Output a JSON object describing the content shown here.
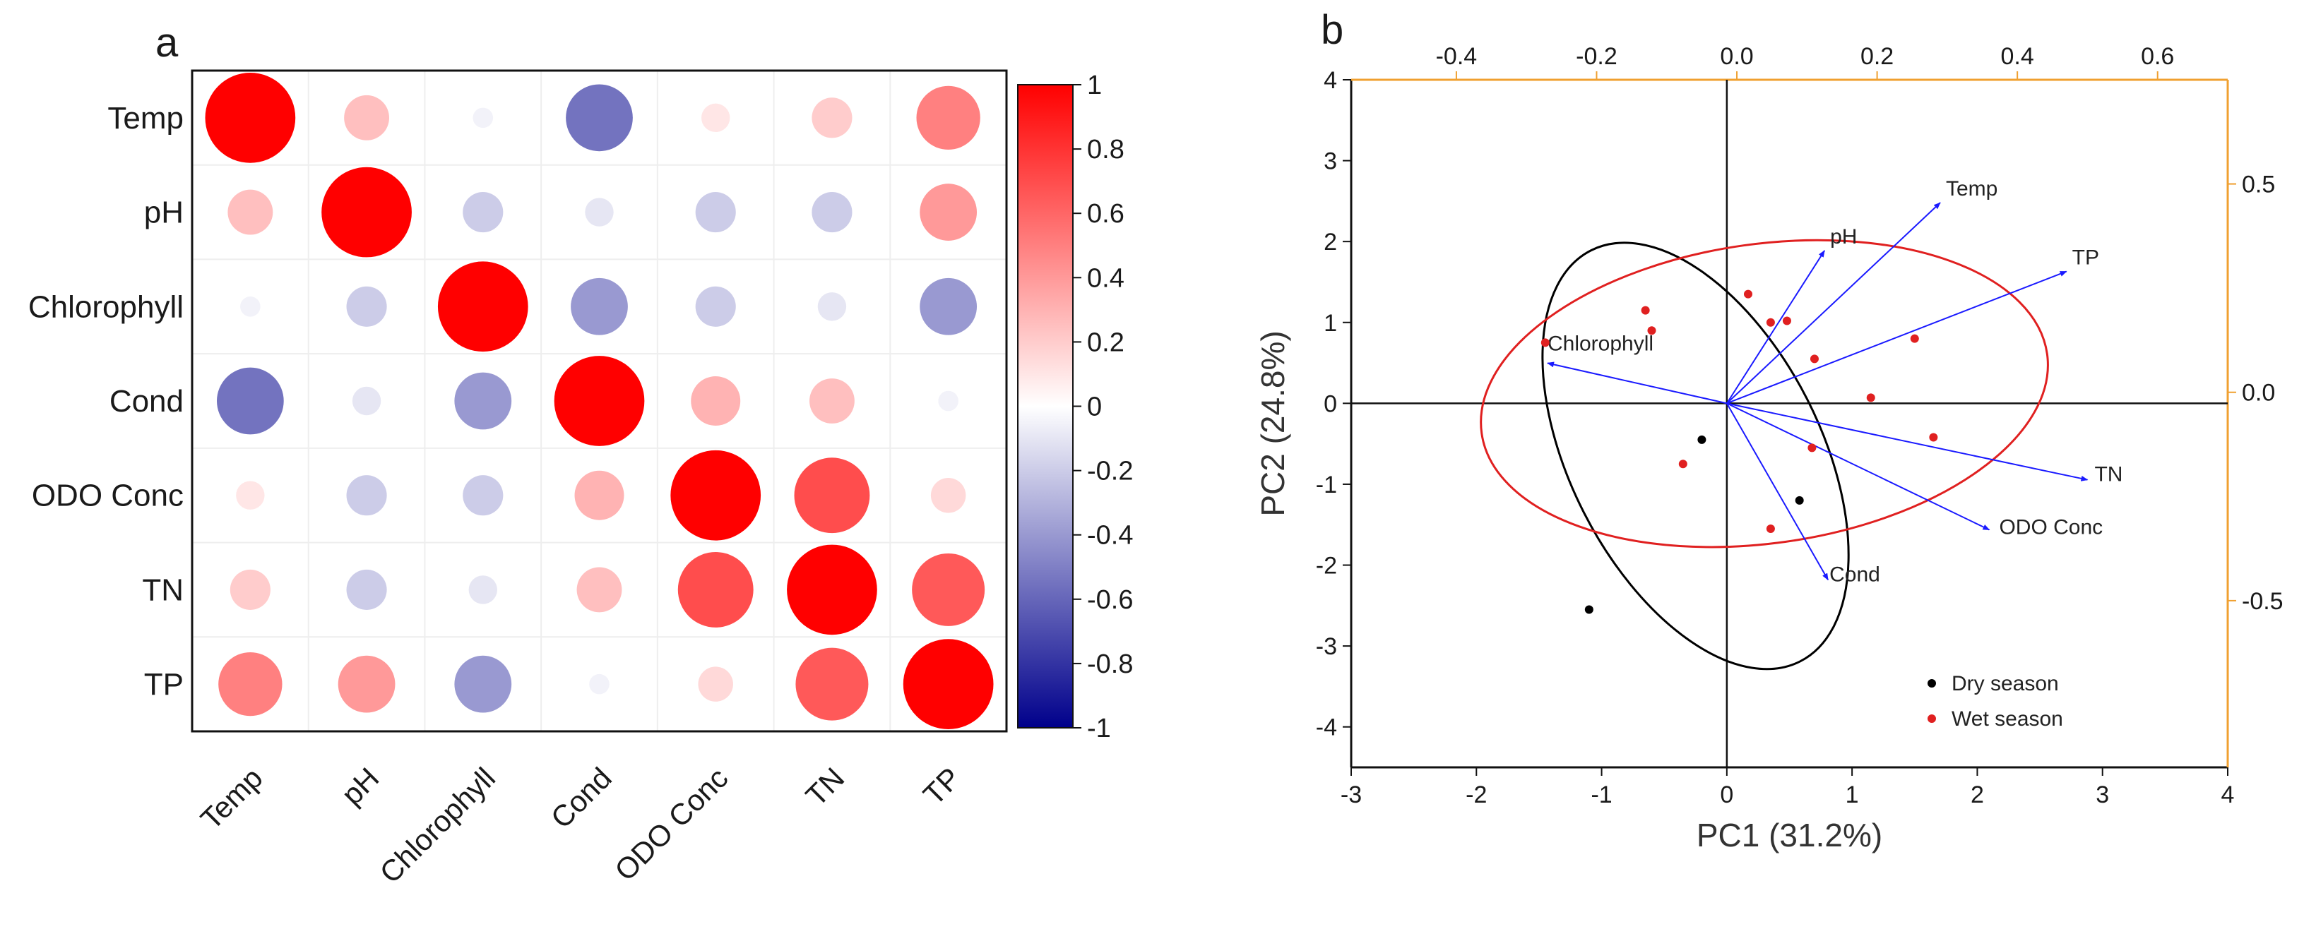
{
  "panel_a": {
    "letter": "a",
    "chart_data": {
      "type": "heatmap",
      "title": "",
      "variables": [
        "Temp",
        "pH",
        "Chlorophyll",
        "Cond",
        "ODO Conc",
        "TN",
        "TP"
      ],
      "matrix": [
        [
          1.0,
          0.25,
          -0.05,
          -0.55,
          0.1,
          0.2,
          0.5
        ],
        [
          0.25,
          1.0,
          -0.2,
          -0.1,
          -0.2,
          -0.2,
          0.4
        ],
        [
          -0.05,
          -0.2,
          1.0,
          -0.4,
          -0.2,
          -0.1,
          -0.4
        ],
        [
          -0.55,
          -0.1,
          -0.4,
          1.0,
          0.3,
          0.25,
          -0.05
        ],
        [
          0.1,
          -0.2,
          -0.2,
          0.3,
          1.0,
          0.7,
          0.15
        ],
        [
          0.2,
          -0.2,
          -0.1,
          0.25,
          0.7,
          1.0,
          0.65
        ],
        [
          0.5,
          0.4,
          -0.4,
          -0.05,
          0.15,
          0.65,
          1.0
        ]
      ],
      "colorbar": {
        "ticks": [
          "1",
          "0.8",
          "0.6",
          "0.4",
          "0.2",
          "0",
          "-0.2",
          "-0.4",
          "-0.6",
          "-0.8",
          "-1"
        ],
        "min": -1,
        "max": 1,
        "colors": {
          "positive": "#ff0000",
          "zero": "#ffffff",
          "negative": "#00008b"
        }
      }
    }
  },
  "panel_b": {
    "letter": "b",
    "chart_data": {
      "type": "scatter",
      "title": "",
      "xlabel": "PC1 (31.2%)",
      "ylabel": "PC2 (24.8%)",
      "xlim": [
        -3,
        4
      ],
      "ylim": [
        -4.5,
        4
      ],
      "x_ticks": [
        "-3",
        "-2",
        "-1",
        "0",
        "1",
        "2",
        "3",
        "4"
      ],
      "y_ticks": [
        "4",
        "3",
        "2",
        "1",
        "0",
        "-1",
        "-2",
        "-3",
        "-4"
      ],
      "top_axis": {
        "range": [
          -0.55,
          0.7
        ],
        "ticks": [
          "-0.4",
          "-0.2",
          "0.0",
          "0.2",
          "0.4",
          "0.6"
        ],
        "color": "#f0a030"
      },
      "right_axis": {
        "range": [
          -0.9,
          0.75
        ],
        "ticks": [
          "0.5",
          "0.0",
          "-0.5"
        ],
        "color": "#f0a030"
      },
      "series": [
        {
          "name": "Dry season",
          "color": "#000000",
          "points": [
            [
              -0.2,
              -0.45
            ],
            [
              0.58,
              -1.2
            ],
            [
              -1.1,
              -2.55
            ]
          ]
        },
        {
          "name": "Wet season",
          "color": "#e02020",
          "points": [
            [
              -1.45,
              0.75
            ],
            [
              -0.65,
              1.15
            ],
            [
              -0.6,
              0.9
            ],
            [
              0.17,
              1.35
            ],
            [
              0.35,
              1.0
            ],
            [
              0.48,
              1.02
            ],
            [
              0.7,
              0.55
            ],
            [
              1.5,
              0.8
            ],
            [
              1.15,
              0.07
            ],
            [
              1.65,
              -0.42
            ],
            [
              0.68,
              -0.55
            ],
            [
              -0.35,
              -0.75
            ],
            [
              0.35,
              -1.55
            ]
          ]
        }
      ],
      "loadings": [
        {
          "label": "pH",
          "x": 0.125,
          "y": 0.34
        },
        {
          "label": "Temp",
          "x": 0.29,
          "y": 0.455
        },
        {
          "label": "TP",
          "x": 0.47,
          "y": 0.29
        },
        {
          "label": "Chlorophyll",
          "x": -0.27,
          "y": 0.07
        },
        {
          "label": "TN",
          "x": 0.5,
          "y": -0.21
        },
        {
          "label": "ODO Conc",
          "x": 0.36,
          "y": -0.33
        },
        {
          "label": "Cond",
          "x": 0.13,
          "y": -0.45
        }
      ],
      "ellipses": [
        {
          "name": "Dry season",
          "color": "#000000"
        },
        {
          "name": "Wet season",
          "color": "#e02020"
        }
      ],
      "arrow_color": "#1a1aff",
      "legend": [
        "Dry season",
        "Wet season"
      ],
      "legend_position": "bottom-right"
    }
  }
}
